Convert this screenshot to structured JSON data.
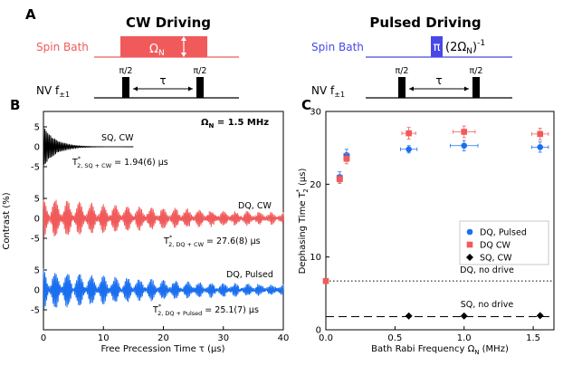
{
  "panels": {
    "a": "A",
    "b": "B",
    "c": "C"
  },
  "schematic": {
    "cw_title": "CW Driving",
    "pulsed_title": "Pulsed Driving",
    "spin_bath": "Spin Bath",
    "omega_n": "Ω",
    "omega_n_sub": "N",
    "nv_label": "NV f",
    "nv_sub": "±1",
    "pi_half": "π/2",
    "tau": "τ",
    "pi_label": "π",
    "pulsed_expr_open": "(2Ω",
    "pulsed_expr_sub": "N",
    "pulsed_expr_close": ")",
    "pulsed_expr_sup": "-1",
    "colors": {
      "red": "#f15a5a",
      "blue": "#4848e8",
      "black": "#000000"
    }
  },
  "chart_data": [
    {
      "type": "line",
      "panel": "B",
      "xlabel": "Free Precession Time τ (μs)",
      "ylabel": "Contrast (%)",
      "xlim": [
        0,
        40
      ],
      "xticks": [
        0,
        10,
        20,
        30,
        40
      ],
      "yticks_each_trace": [
        5,
        0,
        -5
      ],
      "header": "Ω",
      "header_sub": "N",
      "header_value": " = 1.5 MHz",
      "series": [
        {
          "name": "SQ, CW",
          "color": "#000000",
          "x_range": [
            0,
            15
          ],
          "amplitude": 5,
          "decay_time_us": 1.94,
          "fit_label": "T",
          "fit_label_sup": "*",
          "fit_label_sub": "2, SQ + CW",
          "fit_value": " = 1.94(6) μs"
        },
        {
          "name": "DQ, CW",
          "color": "#f15a5a",
          "x_range": [
            0,
            40
          ],
          "amplitude": 5,
          "decay_time_us": 27.6,
          "fit_label": "T",
          "fit_label_sup": "*",
          "fit_label_sub": "2, DQ + CW",
          "fit_value": " = 27.6(8) μs"
        },
        {
          "name": "DQ, Pulsed",
          "color": "#1a6ff0",
          "x_range": [
            0,
            40
          ],
          "amplitude": 5,
          "decay_time_us": 25.1,
          "fit_label": "T",
          "fit_label_sup": "*",
          "fit_label_sub": "2, DQ + Pulsed",
          "fit_value": " = 25.1(7) μs"
        }
      ]
    },
    {
      "type": "scatter",
      "panel": "C",
      "xlabel": "Bath Rabi Frequency Ω",
      "xlabel_sub": "N",
      "xlabel_unit": " (MHz)",
      "ylabel": "Dephasing Time T",
      "ylabel_sup": "*",
      "ylabel_sub": "2",
      "ylabel_unit": " (μs)",
      "xlim": [
        0,
        1.65
      ],
      "ylim": [
        0,
        30
      ],
      "xticks": [
        "0.0",
        "0.5",
        "1.0",
        "1.5"
      ],
      "yticks": [
        "0",
        "10",
        "20",
        "30"
      ],
      "series": [
        {
          "name": "DQ, Pulsed",
          "marker": "circle",
          "color": "#1a6ff0",
          "points": [
            {
              "x": 0.1,
              "y": 21.0,
              "xerr": 0.02,
              "yerr": 0.7
            },
            {
              "x": 0.15,
              "y": 24.0,
              "xerr": 0.02,
              "yerr": 0.8
            },
            {
              "x": 0.6,
              "y": 24.8,
              "xerr": 0.06,
              "yerr": 0.5
            },
            {
              "x": 1.0,
              "y": 25.3,
              "xerr": 0.1,
              "yerr": 0.7
            },
            {
              "x": 1.55,
              "y": 25.1,
              "xerr": 0.06,
              "yerr": 0.7
            }
          ]
        },
        {
          "name": "DQ CW",
          "marker": "square",
          "color": "#f15a5a",
          "points": [
            {
              "x": 0.0,
              "y": 6.7,
              "xerr": 0.0,
              "yerr": 0.3
            },
            {
              "x": 0.1,
              "y": 20.7,
              "xerr": 0.02,
              "yerr": 0.6
            },
            {
              "x": 0.15,
              "y": 23.5,
              "xerr": 0.02,
              "yerr": 0.7
            },
            {
              "x": 0.6,
              "y": 27.0,
              "xerr": 0.05,
              "yerr": 0.8
            },
            {
              "x": 1.0,
              "y": 27.2,
              "xerr": 0.08,
              "yerr": 0.8
            },
            {
              "x": 1.55,
              "y": 26.9,
              "xerr": 0.06,
              "yerr": 0.8
            }
          ]
        },
        {
          "name": "SQ, CW",
          "marker": "diamond",
          "color": "#000000",
          "points": [
            {
              "x": 0.6,
              "y": 1.9
            },
            {
              "x": 1.0,
              "y": 1.9
            },
            {
              "x": 1.55,
              "y": 1.94
            }
          ]
        }
      ],
      "reference_lines": [
        {
          "label": "DQ, no drive",
          "y": 6.7,
          "style": "dotted"
        },
        {
          "label": "SQ, no drive",
          "y": 1.8,
          "style": "dashed"
        }
      ],
      "legend_position": "center-right"
    }
  ]
}
